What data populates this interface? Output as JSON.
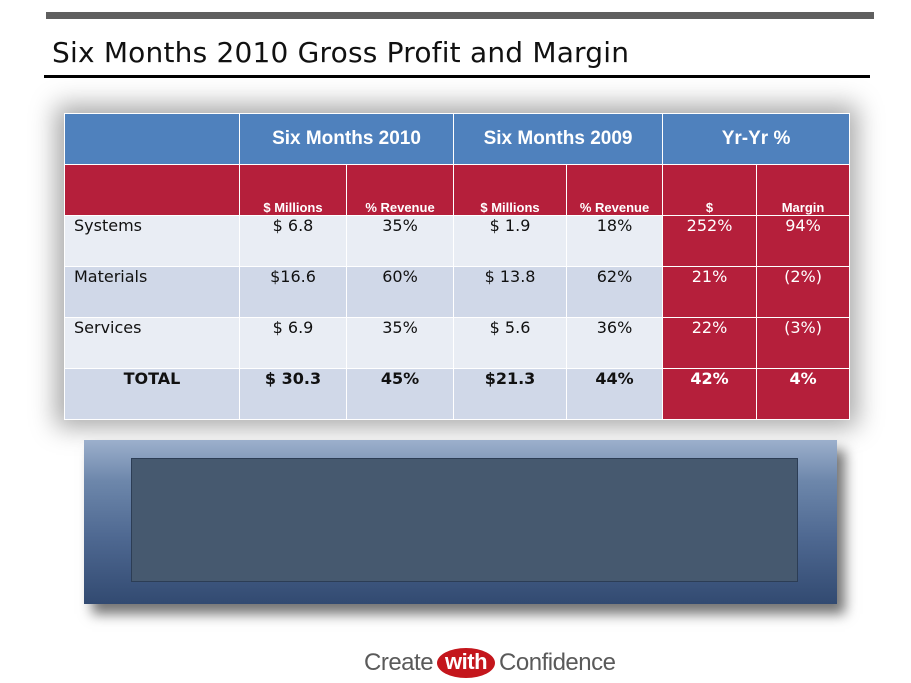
{
  "slide": {
    "title": "Six Months 2010 Gross Profit and Margin"
  },
  "table": {
    "group_headers": [
      "",
      "Six Months 2010",
      "Six Months 2009",
      "Yr-Yr %"
    ],
    "sub_headers": [
      "",
      "$ Millions",
      "% Revenue",
      "$ Millions",
      "% Revenue",
      "$",
      "Margin"
    ],
    "rows": [
      [
        "Systems",
        "$  6.8",
        "35%",
        "$  1.9",
        "18%",
        "252%",
        "94%"
      ],
      [
        "Materials",
        "$16.6",
        "60%",
        "$  13.8",
        "62%",
        "21%",
        "(2%)"
      ],
      [
        "Services",
        "$ 6.9",
        "35%",
        "$  5.6",
        "36%",
        "22%",
        "(3%)"
      ],
      [
        "TOTAL",
        "$ 30.3",
        "45%",
        "$21.3",
        "44%",
        "42%",
        "4%"
      ]
    ]
  },
  "brand": {
    "before": "Create",
    "middle": "with",
    "after": "Confidence",
    "accent": "#c4161c"
  },
  "colors": {
    "header_blue": "#4f81bd",
    "header_red": "#b51f3b"
  }
}
